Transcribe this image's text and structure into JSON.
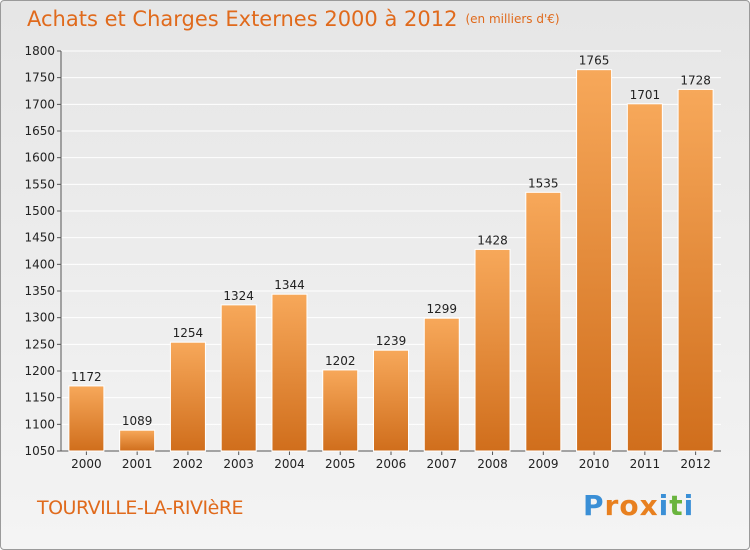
{
  "header": {
    "title": "Achats et Charges Externes 2000 à 2012",
    "subtitle": "(en milliers d'€)"
  },
  "footer": {
    "commune": "TOURVILLE-LA-RIVIèRE",
    "logo": {
      "letters": [
        "P",
        "r",
        "o",
        "x",
        "i",
        "t",
        "i"
      ],
      "colors": [
        "#3a8fd6",
        "#e8801f",
        "#e8801f",
        "#e8801f",
        "#3a8fd6",
        "#6ab43e",
        "#3a8fd6"
      ]
    }
  },
  "colors": {
    "bar_light": "#f7a85a",
    "bar_dark": "#d06e1c",
    "accent": "#e06a1c",
    "grid": "#ffffff"
  },
  "chart_data": {
    "type": "bar",
    "title": "Achats et Charges Externes 2000 à 2012",
    "subtitle": "(en milliers d'€)",
    "categories": [
      "2000",
      "2001",
      "2002",
      "2003",
      "2004",
      "2005",
      "2006",
      "2007",
      "2008",
      "2009",
      "2010",
      "2011",
      "2012"
    ],
    "values": [
      1172,
      1089,
      1254,
      1324,
      1344,
      1202,
      1239,
      1299,
      1428,
      1535,
      1765,
      1701,
      1728
    ],
    "ylim": [
      1050,
      1800
    ],
    "yticks": [
      1050,
      1100,
      1150,
      1200,
      1250,
      1300,
      1350,
      1400,
      1450,
      1500,
      1550,
      1600,
      1650,
      1700,
      1750,
      1800
    ],
    "xlabel": "",
    "ylabel": "",
    "grid": true,
    "legend": "none"
  }
}
